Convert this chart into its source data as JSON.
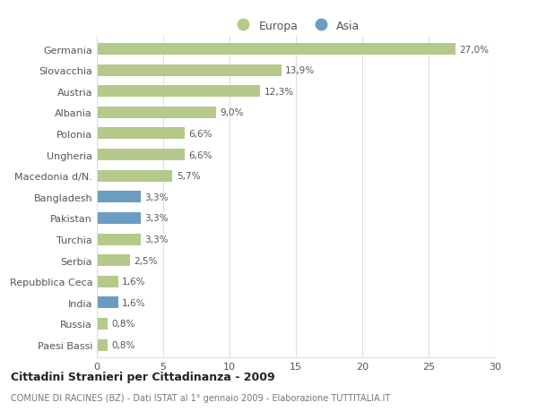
{
  "categories": [
    "Paesi Bassi",
    "Russia",
    "India",
    "Repubblica Ceca",
    "Serbia",
    "Turchia",
    "Pakistan",
    "Bangladesh",
    "Macedonia d/N.",
    "Ungheria",
    "Polonia",
    "Albania",
    "Austria",
    "Slovacchia",
    "Germania"
  ],
  "values": [
    0.8,
    0.8,
    1.6,
    1.6,
    2.5,
    3.3,
    3.3,
    3.3,
    5.7,
    6.6,
    6.6,
    9.0,
    12.3,
    13.9,
    27.0
  ],
  "colors": [
    "#b5c98a",
    "#b5c98a",
    "#6b9dc2",
    "#b5c98a",
    "#b5c98a",
    "#b5c98a",
    "#6b9dc2",
    "#6b9dc2",
    "#b5c98a",
    "#b5c98a",
    "#b5c98a",
    "#b5c98a",
    "#b5c98a",
    "#b5c98a",
    "#b5c98a"
  ],
  "labels": [
    "0,8%",
    "0,8%",
    "1,6%",
    "1,6%",
    "2,5%",
    "3,3%",
    "3,3%",
    "3,3%",
    "5,7%",
    "6,6%",
    "6,6%",
    "9,0%",
    "12,3%",
    "13,9%",
    "27,0%"
  ],
  "europa_color": "#b5c98a",
  "asia_color": "#6b9dc2",
  "title": "Cittadini Stranieri per Cittadinanza - 2009",
  "subtitle": "COMUNE DI RACINES (BZ) - Dati ISTAT al 1° gennaio 2009 - Elaborazione TUTTITALIA.IT",
  "xlim": [
    0,
    30
  ],
  "background_color": "#ffffff",
  "grid_color": "#dddddd",
  "bar_height": 0.55
}
